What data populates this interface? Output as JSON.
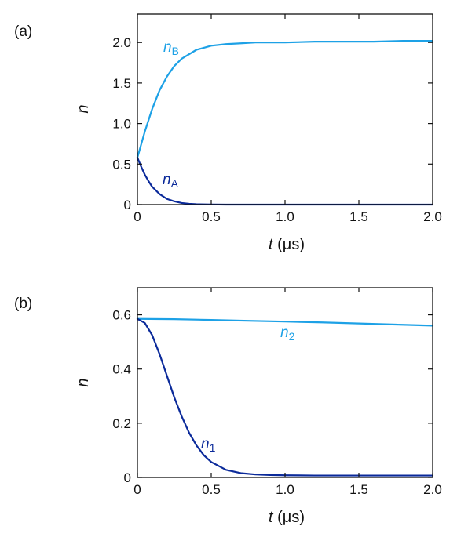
{
  "chart_data": [
    {
      "type": "line",
      "panel_label": "(a)",
      "xlabel": "t (μs)",
      "ylabel": "n",
      "xlim": [
        0,
        2.0
      ],
      "ylim": [
        0,
        2.35
      ],
      "xticks": [
        0,
        0.5,
        1.0,
        1.5,
        2.0
      ],
      "xtick_labels": [
        "0",
        "0.5",
        "1.0",
        "1.5",
        "2.0"
      ],
      "yticks": [
        0,
        0.5,
        1.0,
        1.5,
        2.0
      ],
      "ytick_labels": [
        "0",
        "0.5",
        "1.0",
        "1.5",
        "2.0"
      ],
      "grid": false,
      "series": [
        {
          "name": "nB",
          "label_main": "n",
          "label_sub": "B",
          "color": "#1da1e6",
          "x": [
            0,
            0.05,
            0.1,
            0.15,
            0.2,
            0.25,
            0.3,
            0.4,
            0.5,
            0.6,
            0.7,
            0.8,
            1.0,
            1.2,
            1.4,
            1.6,
            1.8,
            2.0
          ],
          "y": [
            0.58,
            0.9,
            1.18,
            1.41,
            1.58,
            1.71,
            1.8,
            1.91,
            1.96,
            1.98,
            1.99,
            2.0,
            2.0,
            2.01,
            2.01,
            2.01,
            2.02,
            2.02
          ]
        },
        {
          "name": "nA",
          "label_main": "n",
          "label_sub": "A",
          "color": "#0b2a9a",
          "x": [
            0,
            0.025,
            0.05,
            0.075,
            0.1,
            0.15,
            0.2,
            0.25,
            0.3,
            0.35,
            0.4,
            0.5,
            0.6,
            0.8,
            1.0,
            1.5,
            2.0
          ],
          "y": [
            0.58,
            0.47,
            0.37,
            0.29,
            0.22,
            0.13,
            0.07,
            0.04,
            0.02,
            0.01,
            0.005,
            0.002,
            0.0,
            0.0,
            0.0,
            0.0,
            0.0
          ]
        }
      ]
    },
    {
      "type": "line",
      "panel_label": "(b)",
      "xlabel": "t (μs)",
      "ylabel": "n",
      "xlim": [
        0,
        2.0
      ],
      "ylim": [
        0,
        0.7
      ],
      "xticks": [
        0,
        0.5,
        1.0,
        1.5,
        2.0
      ],
      "xtick_labels": [
        "0",
        "0.5",
        "1.0",
        "1.5",
        "2.0"
      ],
      "yticks": [
        0,
        0.2,
        0.4,
        0.6
      ],
      "ytick_labels": [
        "0",
        "0.2",
        "0.4",
        "0.6"
      ],
      "grid": false,
      "series": [
        {
          "name": "n2",
          "label_main": "n",
          "label_sub": "2",
          "color": "#1da1e6",
          "x": [
            0,
            0.25,
            0.5,
            0.75,
            1.0,
            1.25,
            1.5,
            1.75,
            2.0
          ],
          "y": [
            0.585,
            0.584,
            0.581,
            0.578,
            0.575,
            0.572,
            0.568,
            0.564,
            0.56
          ]
        },
        {
          "name": "n1",
          "label_main": "n",
          "label_sub": "1",
          "color": "#0b2a9a",
          "x": [
            0,
            0.05,
            0.1,
            0.15,
            0.2,
            0.25,
            0.3,
            0.35,
            0.4,
            0.45,
            0.5,
            0.6,
            0.7,
            0.8,
            0.9,
            1.0,
            1.2,
            1.5,
            2.0
          ],
          "y": [
            0.585,
            0.57,
            0.525,
            0.455,
            0.375,
            0.295,
            0.225,
            0.165,
            0.118,
            0.082,
            0.057,
            0.028,
            0.016,
            0.011,
            0.009,
            0.008,
            0.007,
            0.007,
            0.007
          ]
        }
      ]
    }
  ]
}
